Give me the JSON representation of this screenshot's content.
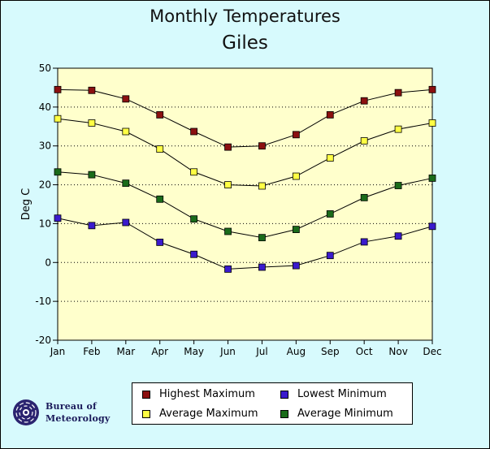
{
  "chart_data": {
    "type": "line",
    "title": "Monthly Temperatures",
    "subtitle": "Giles",
    "xlabel": "",
    "ylabel": "Deg C",
    "categories": [
      "Jan",
      "Feb",
      "Mar",
      "Apr",
      "May",
      "Jun",
      "Jul",
      "Aug",
      "Sep",
      "Oct",
      "Nov",
      "Dec"
    ],
    "ylim": [
      -20,
      50
    ],
    "yticks": [
      "50",
      "40",
      "30",
      "20",
      "10",
      "0",
      "-10",
      "-20"
    ],
    "ytick_values": [
      50,
      40,
      30,
      20,
      10,
      0,
      -10,
      -20
    ],
    "grid": "horizontal dotted",
    "legend_position": "bottom",
    "series": [
      {
        "name": "Highest Maximum",
        "color": "#8b1010",
        "values": [
          44.5,
          44.3,
          42.1,
          38.0,
          33.7,
          29.7,
          30.0,
          32.9,
          38.0,
          41.6,
          43.7,
          44.5
        ]
      },
      {
        "name": "Average Maximum",
        "color": "#ffff44",
        "values": [
          37.0,
          35.9,
          33.7,
          29.2,
          23.3,
          20.0,
          19.7,
          22.2,
          26.9,
          31.3,
          34.3,
          35.9
        ]
      },
      {
        "name": "Average Minimum",
        "color": "#1a6b1a",
        "values": [
          23.3,
          22.6,
          20.4,
          16.3,
          11.2,
          8.0,
          6.4,
          8.5,
          12.5,
          16.7,
          19.8,
          21.7
        ]
      },
      {
        "name": "Lowest Minimum",
        "color": "#3a1acd",
        "values": [
          11.4,
          9.5,
          10.3,
          5.2,
          2.1,
          -1.7,
          -1.2,
          -0.8,
          1.8,
          5.3,
          6.8,
          9.3
        ]
      }
    ]
  },
  "legend": {
    "items": [
      {
        "label": "Highest Maximum",
        "color": "#8b1010"
      },
      {
        "label": "Lowest Minimum",
        "color": "#3a1acd"
      },
      {
        "label": "Average Maximum",
        "color": "#ffff44"
      },
      {
        "label": "Average Minimum",
        "color": "#1a6b1a"
      }
    ]
  },
  "logo": {
    "line1": "Bureau of",
    "line2": "Meteorology"
  },
  "colors": {
    "background": "#d7fafd",
    "plot_background": "#ffffcc"
  }
}
